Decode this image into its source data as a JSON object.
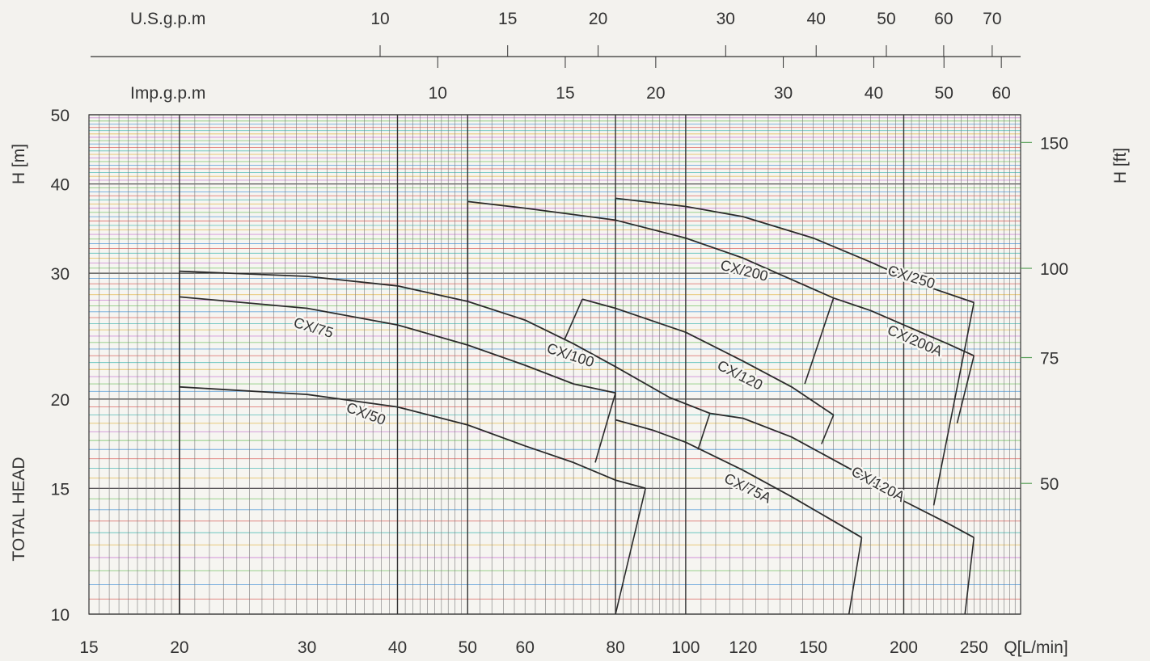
{
  "chart_data": {
    "type": "line",
    "x_scale": "log",
    "y_scale": "log",
    "x_axis": {
      "label": "Q[L/min]",
      "range": [
        15,
        290
      ],
      "ticks": [
        15,
        20,
        30,
        40,
        50,
        60,
        80,
        100,
        120,
        150,
        200,
        250
      ],
      "tick_labels": [
        "15",
        "20",
        "30",
        "40",
        "50",
        "60",
        "80",
        "100",
        "120",
        "150",
        "200",
        "250"
      ]
    },
    "y_axis_left": {
      "label": "H [m]",
      "secondary_label": "TOTAL HEAD",
      "range": [
        10,
        50
      ],
      "ticks": [
        10,
        15,
        20,
        30,
        40,
        50
      ],
      "tick_labels": [
        "10",
        "15",
        "20",
        "30",
        "40",
        "50"
      ]
    },
    "y_axis_right": {
      "label": "H [ft]",
      "ticks": [
        50,
        75,
        100,
        150
      ],
      "tick_labels": [
        "50",
        "75",
        "100",
        "150"
      ],
      "conversion_m_to_ft": 3.2808
    },
    "top_scales": [
      {
        "label": "U.S.g.p.m",
        "conversion_lpm_per_unit": 3.785,
        "ticks": [
          10,
          15,
          20,
          30,
          40,
          50,
          60,
          70
        ],
        "tick_labels": [
          "10",
          "15",
          "20",
          "30",
          "40",
          "50",
          "60",
          "70"
        ]
      },
      {
        "label": "Imp.g.p.m",
        "conversion_lpm_per_unit": 4.546,
        "ticks": [
          10,
          15,
          20,
          30,
          40,
          50,
          60
        ],
        "tick_labels": [
          "10",
          "15",
          "20",
          "30",
          "40",
          "50",
          "60"
        ]
      }
    ],
    "grid": true,
    "series": [
      {
        "name": "CX/50",
        "points": [
          [
            20,
            20.8
          ],
          [
            30,
            20.3
          ],
          [
            40,
            19.5
          ],
          [
            50,
            18.4
          ],
          [
            60,
            17.2
          ],
          [
            70,
            16.3
          ],
          [
            80,
            15.4
          ],
          [
            88,
            15.0
          ]
        ],
        "label_at": [
          36,
          18.8
        ]
      },
      {
        "name": "CX/75",
        "points": [
          [
            20,
            27.8
          ],
          [
            30,
            26.8
          ],
          [
            40,
            25.4
          ],
          [
            50,
            23.8
          ],
          [
            60,
            22.3
          ],
          [
            70,
            21.0
          ],
          [
            80,
            20.4
          ]
        ],
        "label_at": [
          30.5,
          24.8
        ]
      },
      {
        "name": "CX/75A",
        "points": [
          [
            80,
            18.7
          ],
          [
            90,
            18.1
          ],
          [
            100,
            17.4
          ],
          [
            120,
            15.9
          ],
          [
            140,
            14.6
          ],
          [
            160,
            13.5
          ],
          [
            175,
            12.8
          ]
        ],
        "label_at": [
          121,
          14.8
        ]
      },
      {
        "name": "CX/100",
        "points": [
          [
            20,
            30.2
          ],
          [
            30,
            29.7
          ],
          [
            40,
            28.8
          ],
          [
            50,
            27.4
          ],
          [
            60,
            25.8
          ],
          [
            70,
            23.9
          ],
          [
            80,
            22.2
          ],
          [
            95,
            20.1
          ],
          [
            108,
            19.1
          ]
        ],
        "label_at": [
          69,
          22.7
        ]
      },
      {
        "name": "CX/120",
        "points": [
          [
            72,
            27.6
          ],
          [
            80,
            26.8
          ],
          [
            100,
            24.8
          ],
          [
            120,
            22.6
          ],
          [
            140,
            20.8
          ],
          [
            160,
            19.0
          ]
        ],
        "label_at": [
          118,
          21.3
        ]
      },
      {
        "name": "CX/120A",
        "points": [
          [
            108,
            19.1
          ],
          [
            120,
            18.8
          ],
          [
            140,
            17.7
          ],
          [
            170,
            15.9
          ],
          [
            200,
            14.4
          ],
          [
            230,
            13.4
          ],
          [
            250,
            12.8
          ]
        ],
        "label_at": [
          183,
          15.0
        ]
      },
      {
        "name": "CX/200",
        "points": [
          [
            50,
            37.8
          ],
          [
            60,
            37.0
          ],
          [
            80,
            35.6
          ],
          [
            100,
            33.6
          ],
          [
            120,
            31.5
          ],
          [
            140,
            29.4
          ],
          [
            160,
            27.7
          ]
        ],
        "label_at": [
          120,
          29.8
        ]
      },
      {
        "name": "CX/200A",
        "points": [
          [
            160,
            27.7
          ],
          [
            180,
            26.6
          ],
          [
            200,
            25.4
          ],
          [
            230,
            23.9
          ],
          [
            250,
            23.0
          ]
        ],
        "label_at": [
          206,
          23.8
        ]
      },
      {
        "name": "CX/250",
        "points": [
          [
            80,
            38.2
          ],
          [
            100,
            37.2
          ],
          [
            120,
            36.0
          ],
          [
            150,
            33.6
          ],
          [
            180,
            31.1
          ],
          [
            210,
            29.0
          ],
          [
            250,
            27.3
          ]
        ],
        "label_at": [
          204,
          29.2
        ]
      }
    ],
    "connectors": [
      [
        [
          20,
          30.2
        ],
        [
          20,
          10
        ]
      ],
      [
        [
          50,
          37.8
        ],
        [
          50,
          27.4
        ]
      ],
      [
        [
          80,
          38.2
        ],
        [
          80,
          35.6
        ]
      ],
      [
        [
          72,
          27.6
        ],
        [
          68,
          24.2
        ]
      ],
      [
        [
          80,
          20.4
        ],
        [
          75,
          16.3
        ]
      ],
      [
        [
          88,
          15.0
        ],
        [
          80,
          10
        ]
      ],
      [
        [
          108,
          19.1
        ],
        [
          104,
          17.0
        ]
      ],
      [
        [
          160,
          27.7
        ],
        [
          146,
          21.0
        ]
      ],
      [
        [
          160,
          19.0
        ],
        [
          154,
          17.3
        ]
      ],
      [
        [
          175,
          12.8
        ],
        [
          168,
          10
        ]
      ],
      [
        [
          250,
          27.3
        ],
        [
          220,
          14.2
        ]
      ],
      [
        [
          250,
          23.0
        ],
        [
          237,
          18.5
        ]
      ],
      [
        [
          250,
          12.8
        ],
        [
          243,
          10
        ]
      ]
    ]
  }
}
